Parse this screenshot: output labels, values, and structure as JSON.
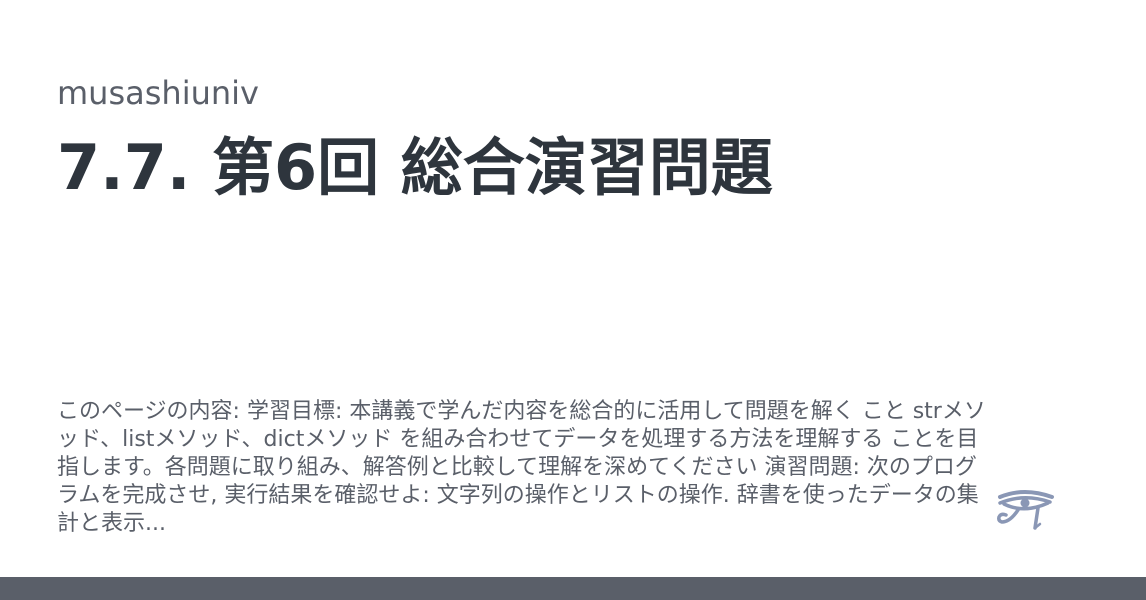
{
  "site": {
    "name": "musashiuniv"
  },
  "page": {
    "title": "7.7. 第6回 総合演習問題",
    "description": "このページの内容: 学習目標: 本講義で学んだ内容を総合的に活用して問題を解く こと strメソッド、listメソッド、dictメソッド を組み合わせてデータを処理する方法を理解する ことを目指します。各問題に取り組み、解答例と比較して理解を深めてください 演習問題: 次のプログラムを完成させ, 実行結果を確認せよ: 文字列の操作とリストの操作. 辞書を使ったデータの集計と表示..."
  },
  "logo": {
    "icon": "eye-of-horus-icon",
    "color": "#8a97b5"
  },
  "footer": {
    "bar_color": "#5a5f69"
  }
}
